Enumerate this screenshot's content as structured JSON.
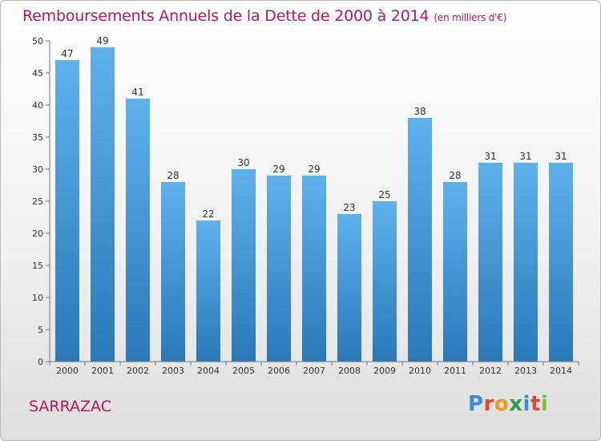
{
  "header": {
    "title": "Remboursements Annuels de la Dette de 2000 à 2014",
    "unit": "(en milliers d'€)"
  },
  "footer": {
    "commune": "SARRAZAC",
    "logo_letters": [
      "P",
      "r",
      "o",
      "x",
      "i",
      "t",
      "i"
    ],
    "logo_colors": [
      "#3a8bd6",
      "#e8452a",
      "#f29a18",
      "#2f9e44",
      "#3a8bd6",
      "#e8452a",
      "#7cbf3a"
    ]
  },
  "colors": {
    "title": "#b5175c",
    "bar_top": "#5fb1ec",
    "bar_bottom": "#2a78b8"
  },
  "chart_data": {
    "type": "bar",
    "title": "Remboursements Annuels de la Dette de 2000 à 2014",
    "xlabel": "",
    "ylabel": "",
    "categories": [
      "2000",
      "2001",
      "2002",
      "2003",
      "2004",
      "2005",
      "2006",
      "2007",
      "2008",
      "2009",
      "2010",
      "2011",
      "2012",
      "2013",
      "2014"
    ],
    "values": [
      47,
      49,
      41,
      28,
      22,
      30,
      29,
      29,
      23,
      25,
      38,
      28,
      31,
      31,
      31
    ],
    "ylim": [
      0,
      50
    ],
    "yticks": [
      0,
      5,
      10,
      15,
      20,
      25,
      30,
      35,
      40,
      45,
      50
    ],
    "grid": false,
    "data_labels": true
  }
}
